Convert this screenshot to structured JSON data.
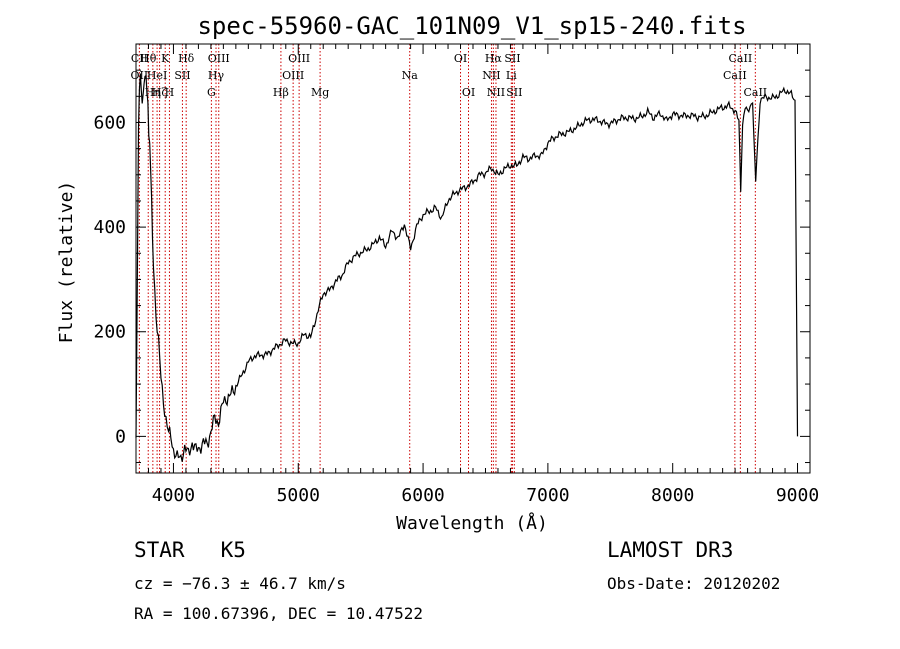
{
  "chart_data": {
    "type": "line",
    "title": "spec-55960-GAC_101N09_V1_sp15-240.fits",
    "xlabel": "Wavelength (Å)",
    "ylabel": "Flux (relative)",
    "xlim": [
      3700,
      9100
    ],
    "ylim": [
      -70,
      750
    ],
    "xticks": [
      4000,
      5000,
      6000,
      7000,
      8000,
      9000
    ],
    "yticks": [
      0,
      200,
      400,
      600
    ],
    "grid": false,
    "series": [
      {
        "name": "flux",
        "x": [
          3700,
          3710,
          3720,
          3735,
          3750,
          3765,
          3780,
          3795,
          3810,
          3825,
          3840,
          3860,
          3880,
          3900,
          3920,
          3940,
          3960,
          3980,
          4000,
          4030,
          4060,
          4090,
          4120,
          4150,
          4180,
          4210,
          4240,
          4270,
          4300,
          4330,
          4360,
          4400,
          4450,
          4500,
          4550,
          4600,
          4650,
          4700,
          4750,
          4800,
          4850,
          4900,
          4950,
          5000,
          5050,
          5100,
          5150,
          5200,
          5250,
          5300,
          5350,
          5400,
          5450,
          5500,
          5550,
          5600,
          5650,
          5700,
          5750,
          5800,
          5850,
          5900,
          5950,
          6000,
          6050,
          6100,
          6150,
          6200,
          6250,
          6300,
          6350,
          6400,
          6450,
          6500,
          6550,
          6600,
          6650,
          6700,
          6750,
          6800,
          6850,
          6900,
          6950,
          7000,
          7100,
          7200,
          7300,
          7400,
          7500,
          7600,
          7700,
          7800,
          7850,
          7900,
          7950,
          8000,
          8100,
          8200,
          8300,
          8400,
          8450,
          8500,
          8530,
          8545,
          8560,
          8580,
          8600,
          8620,
          8640,
          8665,
          8700,
          8750,
          8800,
          8850,
          8900,
          8950,
          8980,
          9000
        ],
        "y": [
          0,
          280,
          610,
          690,
          640,
          670,
          700,
          620,
          560,
          450,
          320,
          230,
          180,
          110,
          70,
          40,
          15,
          5,
          -20,
          -40,
          -45,
          -30,
          -40,
          -15,
          -25,
          -15,
          -5,
          -10,
          10,
          30,
          20,
          60,
          80,
          100,
          120,
          140,
          150,
          155,
          160,
          170,
          175,
          180,
          175,
          180,
          200,
          190,
          230,
          270,
          280,
          300,
          310,
          330,
          340,
          350,
          360,
          370,
          380,
          360,
          390,
          380,
          410,
          360,
          400,
          420,
          430,
          440,
          420,
          450,
          460,
          470,
          480,
          490,
          500,
          500,
          510,
          500,
          515,
          520,
          515,
          530,
          530,
          540,
          540,
          560,
          575,
          590,
          600,
          605,
          600,
          605,
          610,
          620,
          605,
          615,
          605,
          620,
          610,
          610,
          620,
          625,
          630,
          625,
          605,
          470,
          600,
          630,
          620,
          630,
          640,
          490,
          640,
          650,
          650,
          655,
          660,
          650,
          640,
          0
        ]
      }
    ],
    "lines": [
      {
        "wl": 3727,
        "top": [
          "CII",
          "OII"
        ],
        "rows": [
          0,
          1
        ]
      },
      {
        "wl": 3798,
        "top": [
          "Hθ"
        ],
        "rows": [
          0
        ]
      },
      {
        "wl": 3835,
        "top": [
          "Hη"
        ],
        "rows": [
          2
        ]
      },
      {
        "wl": 3869,
        "top": [
          "HeI"
        ],
        "rows": [
          1
        ]
      },
      {
        "wl": 3889,
        "top": [
          "Hζ"
        ],
        "rows": [
          2
        ]
      },
      {
        "wl": 3934,
        "top": [
          "K"
        ],
        "rows": [
          0
        ]
      },
      {
        "wl": 3968,
        "top": [
          "H"
        ],
        "rows": [
          2
        ]
      },
      {
        "wl": 4072,
        "top": [
          "SII"
        ],
        "rows": [
          1
        ]
      },
      {
        "wl": 4102,
        "top": [
          "Hδ"
        ],
        "rows": [
          0
        ]
      },
      {
        "wl": 4304,
        "top": [
          "G"
        ],
        "rows": [
          2
        ]
      },
      {
        "wl": 4341,
        "top": [
          "Hγ"
        ],
        "rows": [
          1
        ]
      },
      {
        "wl": 4363,
        "top": [
          "OIII"
        ],
        "rows": [
          0
        ]
      },
      {
        "wl": 4861,
        "top": [
          "Hβ"
        ],
        "rows": [
          2
        ]
      },
      {
        "wl": 4959,
        "top": [
          "OIII"
        ],
        "rows": [
          1
        ]
      },
      {
        "wl": 5007,
        "top": [
          "OIII"
        ],
        "rows": [
          0
        ]
      },
      {
        "wl": 5175,
        "top": [
          "Mg"
        ],
        "rows": [
          2
        ]
      },
      {
        "wl": 5893,
        "top": [
          "Na"
        ],
        "rows": [
          1
        ]
      },
      {
        "wl": 6300,
        "top": [
          "OI"
        ],
        "rows": [
          0
        ]
      },
      {
        "wl": 6364,
        "top": [
          "OI"
        ],
        "rows": [
          2
        ]
      },
      {
        "wl": 6548,
        "top": [
          "NII"
        ],
        "rows": [
          1
        ]
      },
      {
        "wl": 6563,
        "top": [
          "Hα"
        ],
        "rows": [
          0
        ]
      },
      {
        "wl": 6584,
        "top": [
          "NII"
        ],
        "rows": [
          2
        ]
      },
      {
        "wl": 6707,
        "top": [
          "Li"
        ],
        "rows": [
          1
        ]
      },
      {
        "wl": 6716,
        "top": [
          "SII"
        ],
        "rows": [
          0
        ]
      },
      {
        "wl": 6731,
        "top": [
          "SII"
        ],
        "rows": [
          2
        ]
      },
      {
        "wl": 8498,
        "top": [
          "CaII"
        ],
        "rows": [
          1
        ]
      },
      {
        "wl": 8542,
        "top": [
          "CaII"
        ],
        "rows": [
          0
        ]
      },
      {
        "wl": 8662,
        "top": [
          "CaII"
        ],
        "rows": [
          2
        ]
      }
    ]
  },
  "info": {
    "object_class": "STAR",
    "subclass": "K5",
    "survey": "LAMOST DR3",
    "velocity": "cz = −76.3 ± 46.7 km/s",
    "obs_date": "Obs-Date: 20120202",
    "coords": "RA = 100.67396, DEC =  10.47522"
  },
  "colors": {
    "spectrum": "#000000",
    "line_markers": "#cc0000",
    "axes": "#000000"
  }
}
